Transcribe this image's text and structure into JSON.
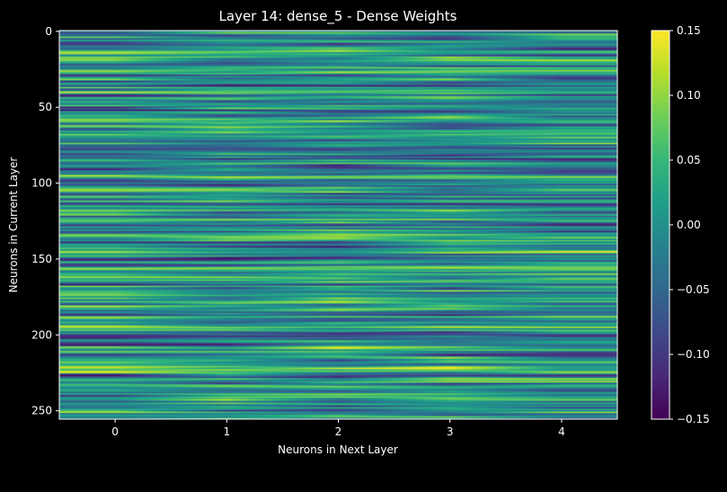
{
  "colors": {
    "background": "#000000",
    "text": "#ffffff",
    "colormap": [
      "#440154",
      "#482878",
      "#3e4989",
      "#31688e",
      "#26828e",
      "#1f9e89",
      "#35b779",
      "#6ece58",
      "#b5de2b",
      "#fde725"
    ]
  },
  "chart_data": {
    "type": "heatmap",
    "title": "Layer 14: dense_5 - Dense Weights",
    "xlabel": "Neurons in Next Layer",
    "ylabel": "Neurons in Current Layer",
    "x_ticks": [
      0,
      1,
      2,
      3,
      4
    ],
    "y_ticks": [
      0,
      50,
      100,
      150,
      200,
      250
    ],
    "xlim": [
      -0.5,
      4.5
    ],
    "ylim": [
      255.5,
      -0.5
    ],
    "rows": 256,
    "cols": 5,
    "colormap": "viridis",
    "interpolation": "bilinear",
    "value_range": [
      -0.15,
      0.15
    ],
    "colorbar_ticks": [
      "0.15",
      "0.10",
      "0.05",
      "0.00",
      "−0.05",
      "−0.10",
      "−0.15"
    ],
    "colorbar_tick_values": [
      0.15,
      0.1,
      0.05,
      0.0,
      -0.05,
      -0.1,
      -0.15
    ],
    "random_seed": 14
  }
}
